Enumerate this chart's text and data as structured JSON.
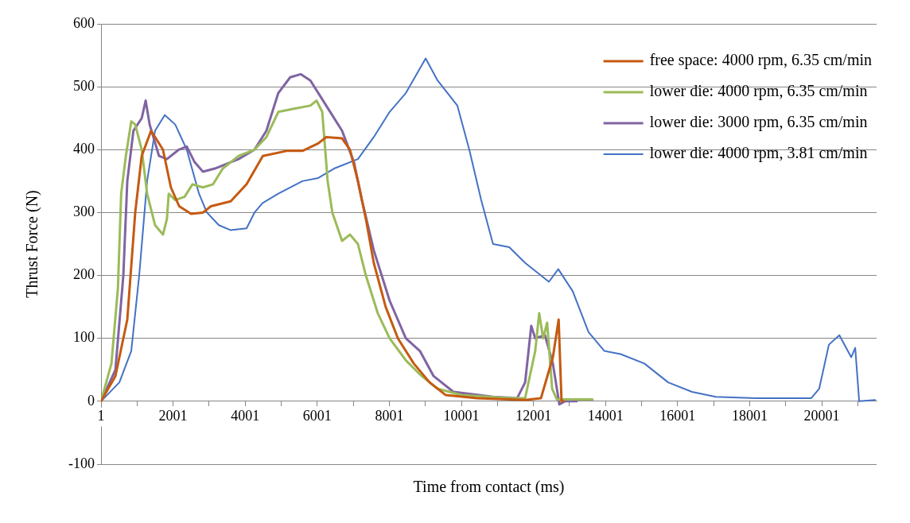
{
  "chart_data": {
    "type": "line",
    "xlabel": "Time from contact (ms)",
    "ylabel": "Thrust Force (N)",
    "xlim": [
      1,
      21523
    ],
    "xticks": [
      1,
      {
        "value": 1001,
        "label": null
      },
      2001,
      {
        "value": 3001,
        "label": null
      },
      4001,
      {
        "value": 5001,
        "label": null
      },
      6001,
      {
        "value": 7001,
        "label": null
      },
      8001,
      {
        "value": 9001,
        "label": null
      },
      10001,
      {
        "value": 11001,
        "label": null
      },
      12001,
      {
        "value": 13001,
        "label": null
      },
      14001,
      {
        "value": 15001,
        "label": null
      },
      16001,
      {
        "value": 17001,
        "label": null
      },
      18001,
      {
        "value": 19001,
        "label": null
      },
      20001,
      {
        "value": 21001,
        "label": null
      }
    ],
    "ylim": [
      -100,
      600
    ],
    "yticks": [
      -100,
      0,
      100,
      200,
      300,
      400,
      500,
      600
    ],
    "grid": "y",
    "legend": "top right",
    "marker": "none",
    "line_style": "solid",
    "series": [
      {
        "name": "free space: 4000 rpm, 6.35 cm/min",
        "color": "#c55a11",
        "x": [
          1,
          400,
          730,
          950,
          1130,
          1390,
          1720,
          1940,
          2170,
          2500,
          2830,
          3050,
          3600,
          4040,
          4490,
          5150,
          5590,
          6030,
          6250,
          6690,
          6910,
          7130,
          7350,
          7570,
          7900,
          8240,
          8680,
          9120,
          9560,
          10440,
          11770,
          12210,
          12540,
          12700,
          12780,
          12830
        ],
        "values": [
          0,
          40,
          130,
          300,
          390,
          430,
          400,
          340,
          310,
          298,
          300,
          310,
          318,
          345,
          390,
          398,
          398,
          410,
          420,
          418,
          400,
          350,
          290,
          220,
          150,
          100,
          60,
          30,
          10,
          5,
          2,
          5,
          70,
          130,
          0,
          0
        ]
      },
      {
        "name": "lower die: 4000 rpm, 6.35 cm/min",
        "color": "#9bbb59",
        "x": [
          1,
          290,
          470,
          560,
          690,
          840,
          950,
          1130,
          1280,
          1500,
          1720,
          1830,
          1880,
          2060,
          2320,
          2540,
          2830,
          3110,
          3380,
          3820,
          4260,
          4590,
          4920,
          5360,
          5810,
          5980,
          6140,
          6290,
          6420,
          6690,
          6910,
          7130,
          7350,
          7680,
          8010,
          8460,
          8900,
          9340,
          10000,
          11330,
          11770,
          12050,
          12160,
          12270,
          12380,
          12520,
          12650,
          13640
        ],
        "values": [
          0,
          60,
          180,
          330,
          390,
          445,
          440,
          400,
          330,
          280,
          265,
          290,
          330,
          320,
          325,
          345,
          340,
          345,
          370,
          390,
          400,
          420,
          460,
          465,
          470,
          478,
          460,
          350,
          300,
          255,
          265,
          250,
          200,
          140,
          100,
          65,
          40,
          20,
          10,
          5,
          5,
          80,
          140,
          100,
          125,
          20,
          3,
          3
        ]
      },
      {
        "name": "lower die: 3000 rpm, 6.35 cm/min",
        "color": "#8064a2",
        "x": [
          1,
          400,
          620,
          730,
          900,
          1130,
          1240,
          1350,
          1610,
          1830,
          2160,
          2380,
          2600,
          2830,
          3160,
          3820,
          4260,
          4590,
          4920,
          5250,
          5540,
          5810,
          6250,
          6690,
          7020,
          7240,
          7570,
          8010,
          8460,
          8850,
          9230,
          9780,
          10880,
          11550,
          11770,
          11940,
          12050,
          12320,
          12540,
          12720,
          12870,
          13200
        ],
        "values": [
          0,
          50,
          200,
          350,
          430,
          450,
          478,
          440,
          390,
          385,
          400,
          405,
          380,
          365,
          370,
          385,
          400,
          430,
          490,
          515,
          520,
          510,
          470,
          430,
          380,
          320,
          240,
          160,
          100,
          80,
          40,
          15,
          7,
          5,
          30,
          120,
          100,
          105,
          60,
          -5,
          0,
          0
        ]
      },
      {
        "name": "lower die: 4000 rpm, 3.81 cm/min",
        "color": "#4472c4",
        "x": [
          1,
          510,
          840,
          1060,
          1280,
          1500,
          1770,
          2060,
          2380,
          2720,
          2940,
          3270,
          3600,
          4040,
          4260,
          4480,
          4920,
          5590,
          6030,
          6470,
          7130,
          7570,
          8010,
          8460,
          9010,
          9340,
          9890,
          10220,
          10550,
          10880,
          11330,
          11770,
          12430,
          12690,
          13090,
          13530,
          13970,
          14420,
          15080,
          15740,
          16400,
          17060,
          18170,
          19710,
          19930,
          20200,
          20490,
          20820,
          20930,
          21040,
          21480
        ],
        "values": [
          0,
          30,
          80,
          200,
          350,
          430,
          455,
          440,
          400,
          330,
          300,
          280,
          272,
          275,
          300,
          315,
          330,
          350,
          355,
          370,
          385,
          420,
          460,
          490,
          545,
          510,
          470,
          400,
          320,
          250,
          245,
          220,
          190,
          210,
          175,
          110,
          80,
          75,
          60,
          30,
          15,
          7,
          5,
          5,
          20,
          90,
          105,
          70,
          85,
          0,
          2
        ]
      }
    ]
  }
}
